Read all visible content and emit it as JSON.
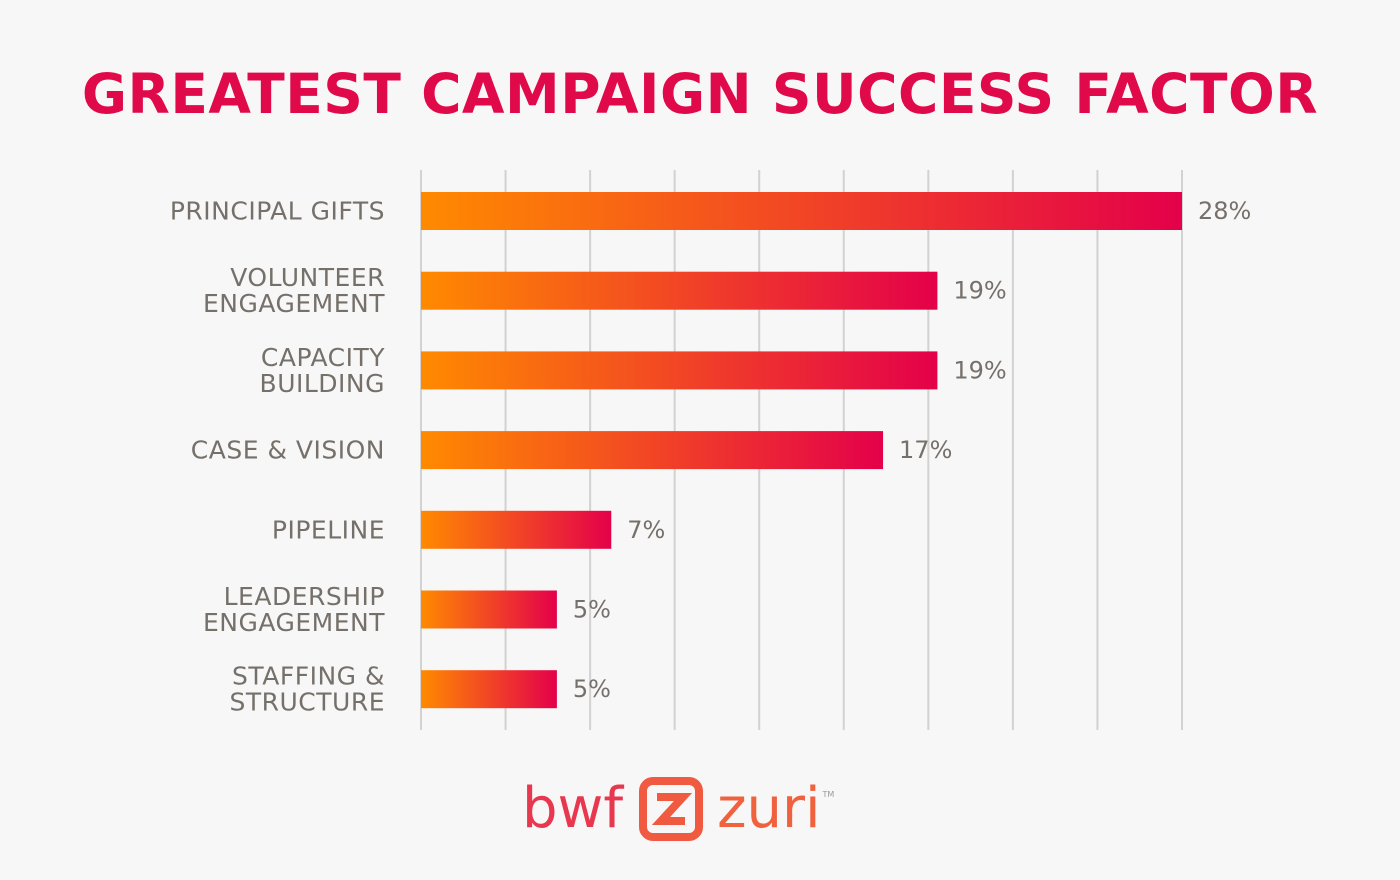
{
  "chart_data": {
    "type": "bar",
    "orientation": "horizontal",
    "title": "GREATEST CAMPAIGN SUCCESS FACTOR",
    "categories": [
      [
        "PRINCIPAL GIFTS"
      ],
      [
        "VOLUNTEER",
        "ENGAGEMENT"
      ],
      [
        "CAPACITY",
        "BUILDING"
      ],
      [
        "CASE & VISION"
      ],
      [
        "PIPELINE"
      ],
      [
        "LEADERSHIP",
        "ENGAGEMENT"
      ],
      [
        "STAFFING &",
        "STRUCTURE"
      ]
    ],
    "values": [
      28,
      19,
      19,
      17,
      7,
      5,
      5
    ],
    "value_labels": [
      "28%",
      "19%",
      "19%",
      "17%",
      "7%",
      "5%",
      "5%"
    ],
    "unit": "%",
    "xlim": [
      0,
      28
    ],
    "grid": true,
    "legend": "none",
    "colors": {
      "bar_start": "#ff8a00",
      "bar_end": "#e4004a",
      "title": "#e0094a",
      "label": "#76706a",
      "grid": "#d2d2d2"
    }
  },
  "logo": {
    "left_word": "bwf",
    "right_word": "zuri",
    "tm": "TM",
    "colors": {
      "left": "#e8384f",
      "mark": "#ef5a40",
      "right": "#f0613e"
    }
  }
}
